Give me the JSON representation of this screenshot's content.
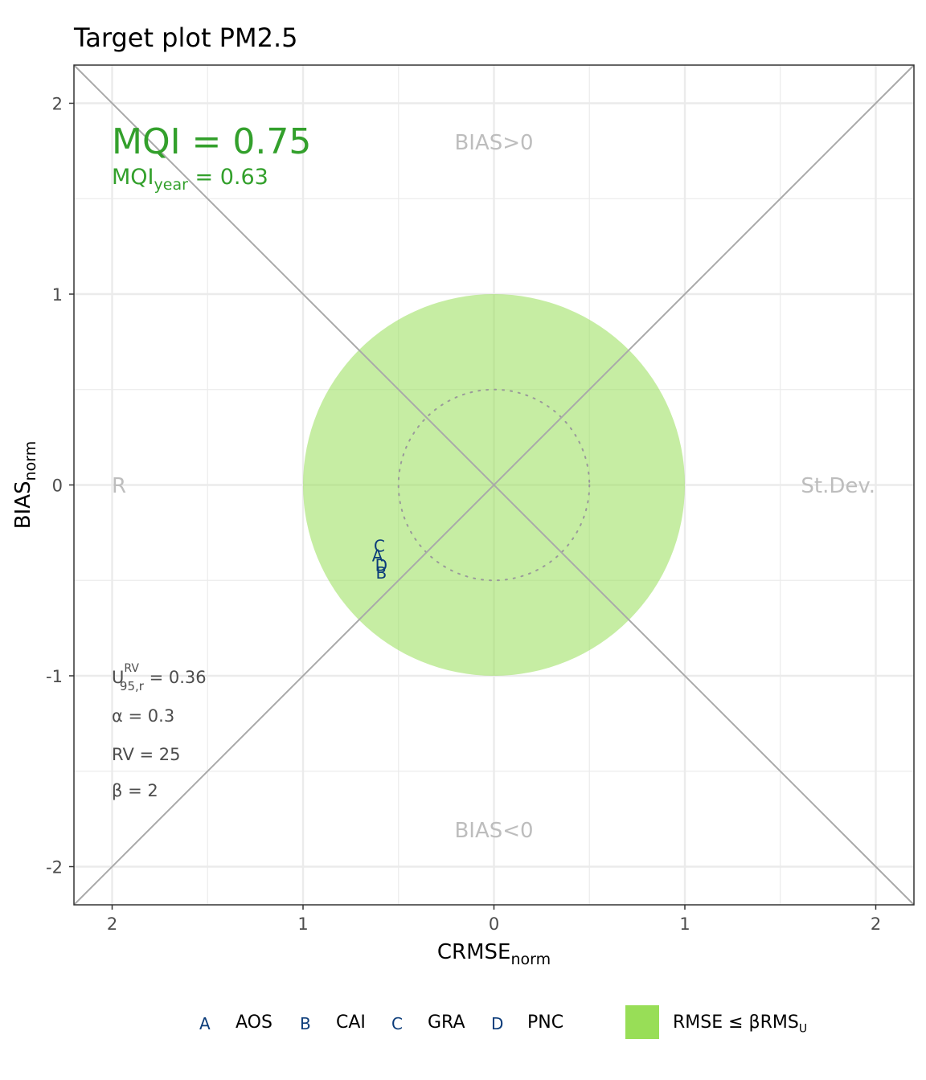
{
  "title": "Target plot PM2.5",
  "colors": {
    "fill": "#98de57",
    "grid": "#ebebeb",
    "diagonal": "#a9a9a9",
    "point_text": "#0b3c7a",
    "mqi": "#33a02c",
    "quadrant_label": "#bdbdbd",
    "stats_text": "#4d4d4d"
  },
  "mqi_label": "MQI = 0.75",
  "mqi_year": {
    "base": "MQI",
    "sub": "year",
    "rest": " = 0.63"
  },
  "quadrant_labels": {
    "top": "BIAS>0",
    "bottom": "BIAS<0",
    "left": "R",
    "right": "St.Dev."
  },
  "stats": {
    "u95": {
      "base": "U",
      "sup": "RV",
      "sub": "95,r",
      "rest": " = 0.36"
    },
    "alpha": "α = 0.3",
    "rv": "RV = 25",
    "beta": "β = 2"
  },
  "legend": {
    "items": [
      {
        "key": "A",
        "label": "AOS"
      },
      {
        "key": "B",
        "label": "CAI"
      },
      {
        "key": "C",
        "label": "GRA"
      },
      {
        "key": "D",
        "label": "PNC"
      }
    ],
    "region": {
      "base": "RMSE ≤ βRMS",
      "sub": "U"
    }
  },
  "chart_data": {
    "type": "scatter",
    "xlabel": {
      "base": "CRMSE",
      "sub": "norm"
    },
    "ylabel": {
      "base": "BIAS",
      "sub": "norm"
    },
    "xlim": [
      -2.2,
      2.2
    ],
    "ylim": [
      -2.2,
      2.2
    ],
    "xticks": [
      -2,
      -1,
      0,
      1,
      2
    ],
    "xtick_labels": [
      "2",
      "1",
      "0",
      "1",
      "2"
    ],
    "yticks": [
      -2,
      -1,
      0,
      1,
      2
    ],
    "ytick_labels": [
      "-2",
      "-1",
      "0",
      "1",
      "2"
    ],
    "grid": true,
    "target_circle_radius": 1,
    "dotted_circle_radius": 0.5,
    "points": [
      {
        "label": "C",
        "x": -0.6,
        "y": -0.32
      },
      {
        "label": "A",
        "x": -0.61,
        "y": -0.37
      },
      {
        "label": "D",
        "x": -0.59,
        "y": -0.42
      },
      {
        "label": "B",
        "x": -0.59,
        "y": -0.46
      }
    ]
  }
}
